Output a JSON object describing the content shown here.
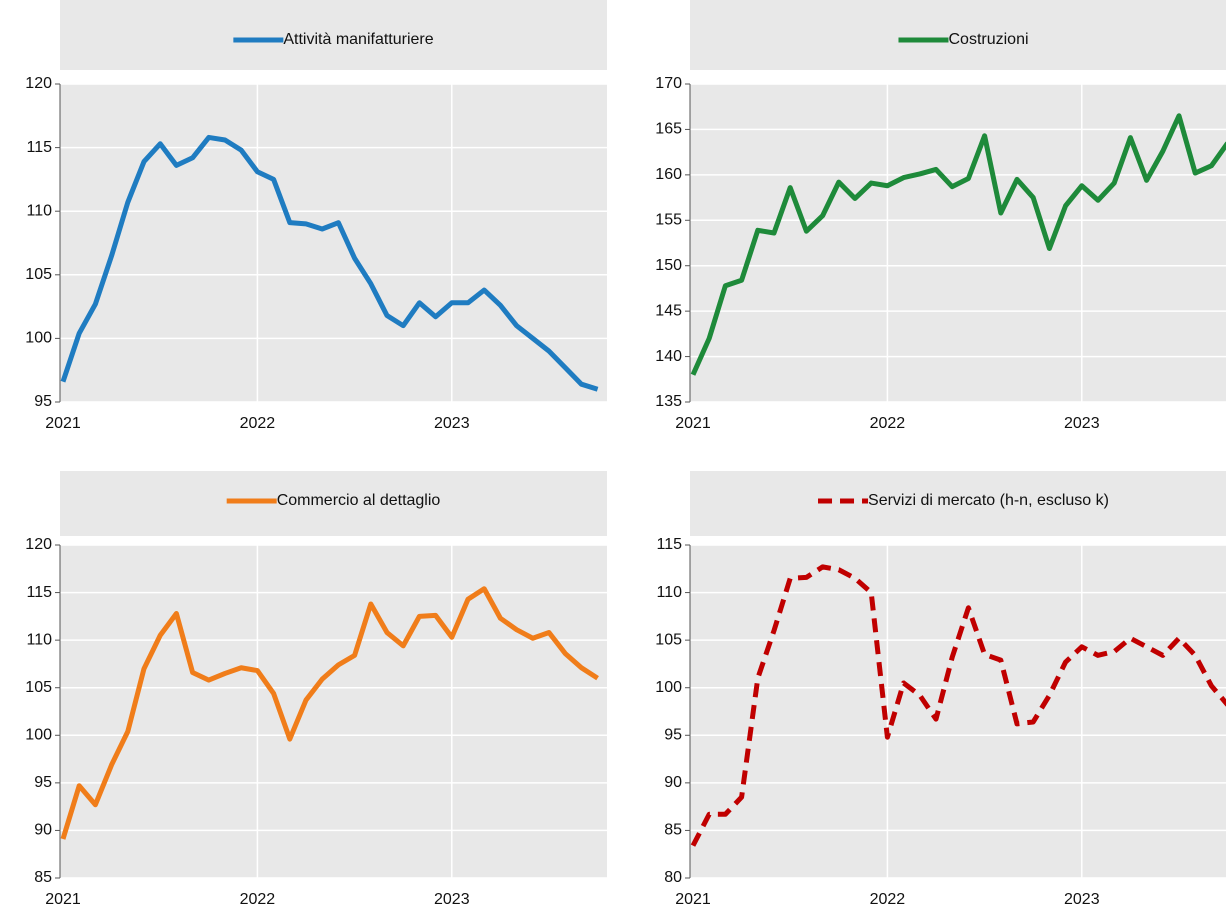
{
  "chart_data": [
    {
      "type": "line",
      "categories": [
        "2021",
        null,
        null,
        null,
        null,
        null,
        null,
        null,
        null,
        null,
        null,
        null,
        "2022",
        null,
        null,
        null,
        null,
        null,
        null,
        null,
        null,
        null,
        null,
        null,
        "2023",
        null,
        null,
        null,
        null,
        null,
        null,
        null,
        null,
        null
      ],
      "series": [
        {
          "name": "Attività manifatturiere",
          "color": "#1f7cc1",
          "line_style": "solid",
          "values": [
            96.6,
            100.4,
            102.7,
            106.5,
            110.7,
            113.9,
            115.3,
            113.6,
            114.2,
            115.8,
            115.6,
            114.8,
            113.1,
            112.5,
            109.1,
            109.0,
            108.6,
            109.1,
            106.3,
            104.3,
            101.8,
            101.0,
            102.8,
            101.7,
            102.8,
            102.8,
            103.8,
            102.6,
            101.0,
            100.0,
            99.0,
            97.7,
            96.4,
            96.0
          ]
        }
      ],
      "ylim": [
        95,
        120
      ],
      "yticks": [
        95,
        100,
        105,
        110,
        115,
        120
      ],
      "grid": true
    },
    {
      "type": "line",
      "categories": [
        "2021",
        null,
        null,
        null,
        null,
        null,
        null,
        null,
        null,
        null,
        null,
        null,
        "2022",
        null,
        null,
        null,
        null,
        null,
        null,
        null,
        null,
        null,
        null,
        null,
        "2023",
        null,
        null,
        null,
        null,
        null,
        null,
        null,
        null,
        null
      ],
      "series": [
        {
          "name": "Costruzioni",
          "color": "#1e8a3a",
          "line_style": "solid",
          "values": [
            138.0,
            142.0,
            147.8,
            148.4,
            153.9,
            153.6,
            158.6,
            153.8,
            155.5,
            159.2,
            157.4,
            159.1,
            158.8,
            159.7,
            160.1,
            160.6,
            158.7,
            159.6,
            164.3,
            155.8,
            159.5,
            157.5,
            151.9,
            156.6,
            158.8,
            157.2,
            159.1,
            164.1,
            159.4,
            162.6,
            166.5,
            160.2,
            161.0,
            163.5
          ]
        }
      ],
      "ylim": [
        135,
        170
      ],
      "yticks": [
        135,
        140,
        145,
        150,
        155,
        160,
        165,
        170
      ],
      "grid": true
    },
    {
      "type": "line",
      "categories": [
        "2021",
        null,
        null,
        null,
        null,
        null,
        null,
        null,
        null,
        null,
        null,
        null,
        "2022",
        null,
        null,
        null,
        null,
        null,
        null,
        null,
        null,
        null,
        null,
        null,
        "2023",
        null,
        null,
        null,
        null,
        null,
        null,
        null,
        null,
        null
      ],
      "series": [
        {
          "name": "Commercio al dettaglio",
          "color": "#f07d1a",
          "line_style": "solid",
          "values": [
            89.1,
            94.7,
            92.7,
            96.9,
            100.4,
            107.0,
            110.5,
            112.8,
            106.6,
            105.8,
            106.5,
            107.1,
            106.8,
            104.4,
            99.6,
            103.7,
            105.9,
            107.4,
            108.4,
            113.8,
            110.8,
            109.4,
            112.5,
            112.6,
            110.3,
            114.3,
            115.4,
            112.3,
            111.1,
            110.2,
            110.8,
            108.6,
            107.1,
            106.0
          ]
        }
      ],
      "ylim": [
        85,
        120
      ],
      "yticks": [
        85,
        90,
        95,
        100,
        105,
        110,
        115,
        120
      ],
      "grid": true
    },
    {
      "type": "line",
      "categories": [
        "2021",
        null,
        null,
        null,
        null,
        null,
        null,
        null,
        null,
        null,
        null,
        null,
        "2022",
        null,
        null,
        null,
        null,
        null,
        null,
        null,
        null,
        null,
        null,
        null,
        "2023",
        null,
        null,
        null,
        null,
        null,
        null,
        null,
        null,
        null
      ],
      "series": [
        {
          "name": "Servizi di mercato (h-n, escluso k)",
          "color": "#c00000",
          "line_style": "dashed",
          "values": [
            83.4,
            86.7,
            86.7,
            88.5,
            101.0,
            106.0,
            111.5,
            111.6,
            112.7,
            112.4,
            111.5,
            110.0,
            94.8,
            100.5,
            99.2,
            96.7,
            103.2,
            108.4,
            103.5,
            102.9,
            96.2,
            96.4,
            99.2,
            102.7,
            104.3,
            103.4,
            103.8,
            105.2,
            104.3,
            103.4,
            105.2,
            103.4,
            100.2,
            98.2
          ]
        }
      ],
      "ylim": [
        80,
        115
      ],
      "yticks": [
        80,
        85,
        90,
        95,
        100,
        105,
        110,
        115
      ],
      "grid": true
    }
  ]
}
